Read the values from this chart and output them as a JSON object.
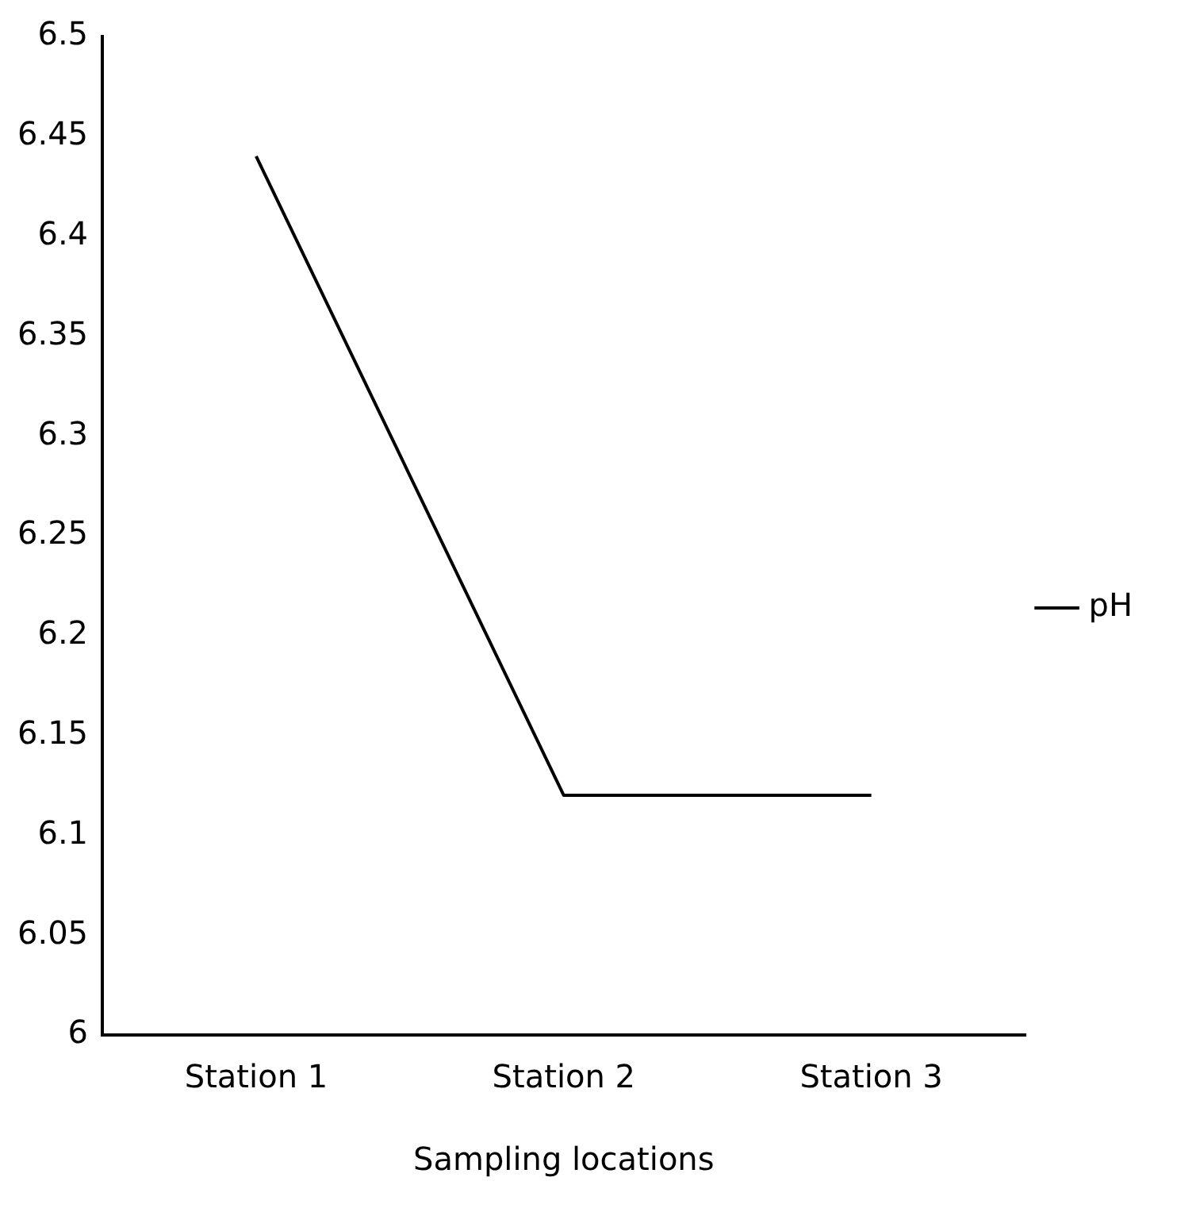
{
  "chart_data": {
    "type": "line",
    "xlabel": "Sampling locations",
    "categories": [
      "Station 1",
      "Station 2",
      "Station 3"
    ],
    "series": [
      {
        "name": "pH",
        "color": "#000000",
        "values": [
          6.44,
          6.12,
          6.12
        ]
      }
    ],
    "ylim": [
      6,
      6.5
    ],
    "yticks": [
      6,
      6.05,
      6.1,
      6.15,
      6.2,
      6.25,
      6.3,
      6.35,
      6.4,
      6.45,
      6.5
    ],
    "grid": false,
    "legend": "right",
    "marker": "none"
  }
}
